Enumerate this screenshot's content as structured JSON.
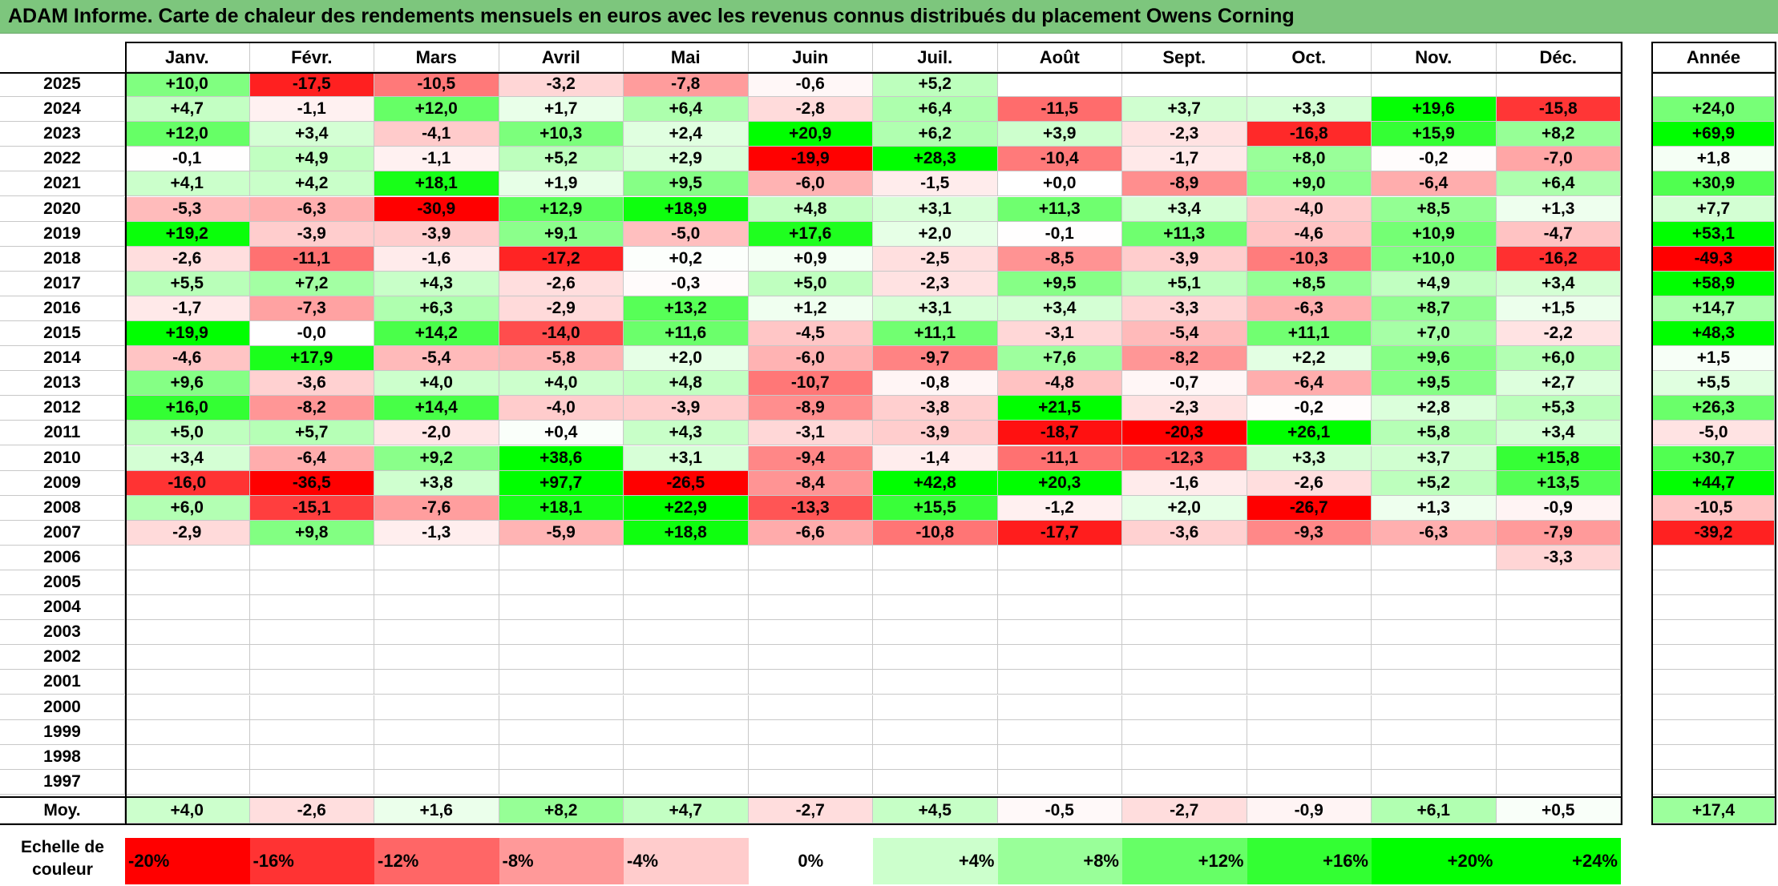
{
  "title": "ADAM Informe. Carte de chaleur des rendements mensuels en euros avec les revenus connus distribués du placement Owens Corning",
  "chart_data": {
    "type": "heatmap",
    "title": "ADAM Informe. Carte de chaleur des rendements mensuels en euros avec les revenus connus distribués du placement Owens Corning",
    "columns": [
      "Janv.",
      "Févr.",
      "Mars",
      "Avril",
      "Mai",
      "Juin",
      "Juil.",
      "Août",
      "Sept.",
      "Oct.",
      "Nov.",
      "Déc."
    ],
    "year_column_label": "Année",
    "rows": [
      {
        "year": "2025",
        "months": [
          "+10,0",
          "-17,5",
          "-10,5",
          "-3,2",
          "-7,8",
          "-0,6",
          "+5,2",
          "",
          "",
          "",
          "",
          ""
        ],
        "annual": ""
      },
      {
        "year": "2024",
        "months": [
          "+4,7",
          "-1,1",
          "+12,0",
          "+1,7",
          "+6,4",
          "-2,8",
          "+6,4",
          "-11,5",
          "+3,7",
          "+3,3",
          "+19,6",
          "-15,8"
        ],
        "annual": "+24,0"
      },
      {
        "year": "2023",
        "months": [
          "+12,0",
          "+3,4",
          "-4,1",
          "+10,3",
          "+2,4",
          "+20,9",
          "+6,2",
          "+3,9",
          "-2,3",
          "-16,8",
          "+15,9",
          "+8,2"
        ],
        "annual": "+69,9"
      },
      {
        "year": "2022",
        "months": [
          "-0,1",
          "+4,9",
          "-1,1",
          "+5,2",
          "+2,9",
          "-19,9",
          "+28,3",
          "-10,4",
          "-1,7",
          "+8,0",
          "-0,2",
          "-7,0"
        ],
        "annual": "+1,8"
      },
      {
        "year": "2021",
        "months": [
          "+4,1",
          "+4,2",
          "+18,1",
          "+1,9",
          "+9,5",
          "-6,0",
          "-1,5",
          "+0,0",
          "-8,9",
          "+9,0",
          "-6,4",
          "+6,4"
        ],
        "annual": "+30,9"
      },
      {
        "year": "2020",
        "months": [
          "-5,3",
          "-6,3",
          "-30,9",
          "+12,9",
          "+18,9",
          "+4,8",
          "+3,1",
          "+11,3",
          "+3,4",
          "-4,0",
          "+8,5",
          "+1,3"
        ],
        "annual": "+7,7"
      },
      {
        "year": "2019",
        "months": [
          "+19,2",
          "-3,9",
          "-3,9",
          "+9,1",
          "-5,0",
          "+17,6",
          "+2,0",
          "-0,1",
          "+11,3",
          "-4,6",
          "+10,9",
          "-4,7"
        ],
        "annual": "+53,1"
      },
      {
        "year": "2018",
        "months": [
          "-2,6",
          "-11,1",
          "-1,6",
          "-17,2",
          "+0,2",
          "+0,9",
          "-2,5",
          "-8,5",
          "-3,9",
          "-10,3",
          "+10,0",
          "-16,2"
        ],
        "annual": "-49,3"
      },
      {
        "year": "2017",
        "months": [
          "+5,5",
          "+7,2",
          "+4,3",
          "-2,6",
          "-0,3",
          "+5,0",
          "-2,3",
          "+9,5",
          "+5,1",
          "+8,5",
          "+4,9",
          "+3,4"
        ],
        "annual": "+58,9"
      },
      {
        "year": "2016",
        "months": [
          "-1,7",
          "-7,3",
          "+6,3",
          "-2,9",
          "+13,2",
          "+1,2",
          "+3,1",
          "+3,4",
          "-3,3",
          "-6,3",
          "+8,7",
          "+1,5"
        ],
        "annual": "+14,7"
      },
      {
        "year": "2015",
        "months": [
          "+19,9",
          "-0,0",
          "+14,2",
          "-14,0",
          "+11,6",
          "-4,5",
          "+11,1",
          "-3,1",
          "-5,4",
          "+11,1",
          "+7,0",
          "-2,2"
        ],
        "annual": "+48,3"
      },
      {
        "year": "2014",
        "months": [
          "-4,6",
          "+17,9",
          "-5,4",
          "-5,8",
          "+2,0",
          "-6,0",
          "-9,7",
          "+7,6",
          "-8,2",
          "+2,2",
          "+9,6",
          "+6,0"
        ],
        "annual": "+1,5"
      },
      {
        "year": "2013",
        "months": [
          "+9,6",
          "-3,6",
          "+4,0",
          "+4,0",
          "+4,8",
          "-10,7",
          "-0,8",
          "-4,8",
          "-0,7",
          "-6,4",
          "+9,5",
          "+2,7"
        ],
        "annual": "+5,5"
      },
      {
        "year": "2012",
        "months": [
          "+16,0",
          "-8,2",
          "+14,4",
          "-4,0",
          "-3,9",
          "-8,9",
          "-3,8",
          "+21,5",
          "-2,3",
          "-0,2",
          "+2,8",
          "+5,3"
        ],
        "annual": "+26,3"
      },
      {
        "year": "2011",
        "months": [
          "+5,0",
          "+5,7",
          "-2,0",
          "+0,4",
          "+4,3",
          "-3,1",
          "-3,9",
          "-18,7",
          "-20,3",
          "+26,1",
          "+5,8",
          "+3,4"
        ],
        "annual": "-5,0"
      },
      {
        "year": "2010",
        "months": [
          "+3,4",
          "-6,4",
          "+9,2",
          "+38,6",
          "+3,1",
          "-9,4",
          "-1,4",
          "-11,1",
          "-12,3",
          "+3,3",
          "+3,7",
          "+15,8"
        ],
        "annual": "+30,7"
      },
      {
        "year": "2009",
        "months": [
          "-16,0",
          "-36,5",
          "+3,8",
          "+97,7",
          "-26,5",
          "-8,4",
          "+42,8",
          "+20,3",
          "-1,6",
          "-2,6",
          "+5,2",
          "+13,5"
        ],
        "annual": "+44,7"
      },
      {
        "year": "2008",
        "months": [
          "+6,0",
          "-15,1",
          "-7,6",
          "+18,1",
          "+22,9",
          "-13,3",
          "+15,5",
          "-1,2",
          "+2,0",
          "-26,7",
          "+1,3",
          "-0,9"
        ],
        "annual": "-10,5"
      },
      {
        "year": "2007",
        "months": [
          "-2,9",
          "+9,8",
          "-1,3",
          "-5,9",
          "+18,8",
          "-6,6",
          "-10,8",
          "-17,7",
          "-3,6",
          "-9,3",
          "-6,3",
          "-7,9"
        ],
        "annual": "-39,2"
      },
      {
        "year": "2006",
        "months": [
          "",
          "",
          "",
          "",
          "",
          "",
          "",
          "",
          "",
          "",
          "",
          "-3,3"
        ],
        "annual": ""
      },
      {
        "year": "2005",
        "months": [
          "",
          "",
          "",
          "",
          "",
          "",
          "",
          "",
          "",
          "",
          "",
          ""
        ],
        "annual": ""
      },
      {
        "year": "2004",
        "months": [
          "",
          "",
          "",
          "",
          "",
          "",
          "",
          "",
          "",
          "",
          "",
          ""
        ],
        "annual": ""
      },
      {
        "year": "2003",
        "months": [
          "",
          "",
          "",
          "",
          "",
          "",
          "",
          "",
          "",
          "",
          "",
          ""
        ],
        "annual": ""
      },
      {
        "year": "2002",
        "months": [
          "",
          "",
          "",
          "",
          "",
          "",
          "",
          "",
          "",
          "",
          "",
          ""
        ],
        "annual": ""
      },
      {
        "year": "2001",
        "months": [
          "",
          "",
          "",
          "",
          "",
          "",
          "",
          "",
          "",
          "",
          "",
          ""
        ],
        "annual": ""
      },
      {
        "year": "2000",
        "months": [
          "",
          "",
          "",
          "",
          "",
          "",
          "",
          "",
          "",
          "",
          "",
          ""
        ],
        "annual": ""
      },
      {
        "year": "1999",
        "months": [
          "",
          "",
          "",
          "",
          "",
          "",
          "",
          "",
          "",
          "",
          "",
          ""
        ],
        "annual": ""
      },
      {
        "year": "1998",
        "months": [
          "",
          "",
          "",
          "",
          "",
          "",
          "",
          "",
          "",
          "",
          "",
          ""
        ],
        "annual": ""
      },
      {
        "year": "1997",
        "months": [
          "",
          "",
          "",
          "",
          "",
          "",
          "",
          "",
          "",
          "",
          "",
          ""
        ],
        "annual": ""
      }
    ],
    "average": {
      "label": "Moy.",
      "months": [
        "+4,0",
        "-2,6",
        "+1,6",
        "+8,2",
        "+4,7",
        "-2,7",
        "+4,5",
        "-0,5",
        "-2,7",
        "-0,9",
        "+6,1",
        "+0,5"
      ],
      "annual": "+17,4"
    },
    "color_scale": {
      "label_line1": "Echelle de",
      "label_line2": "couleur",
      "stops": [
        "-20%",
        "-16%",
        "-12%",
        "-8%",
        "-4%",
        "0%",
        "+4%",
        "+8%",
        "+12%",
        "+16%",
        "+20%",
        "+24%"
      ],
      "negative_color": "#ff0000",
      "positive_color": "#00ff00",
      "neutral_color": "#ffffff"
    }
  }
}
